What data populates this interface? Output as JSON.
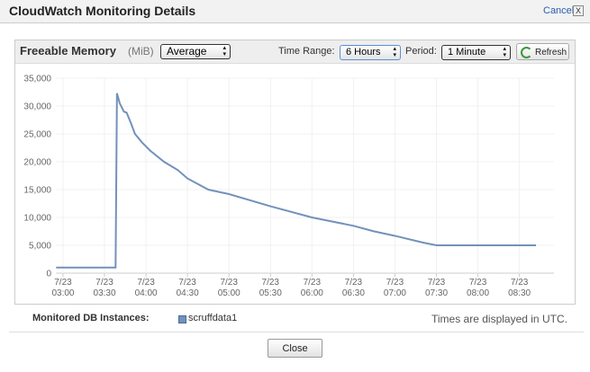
{
  "dialog": {
    "title": "CloudWatch Monitoring Details",
    "cancel": "Cancel",
    "cancel_icon": "X"
  },
  "panel": {
    "metric": "Freeable Memory",
    "unit": "(MiB)",
    "statistic": "Average",
    "time_range_label": "Time Range:",
    "time_range": "6 Hours",
    "period_label": "Period:",
    "period": "1 Minute",
    "refresh": "Refresh"
  },
  "chart_data": {
    "type": "line",
    "x": [
      "7/23 02:55",
      "7/23 03:38",
      "7/23 03:39",
      "7/23 03:41",
      "7/23 03:44",
      "7/23 03:46",
      "7/23 03:49",
      "7/23 03:52",
      "7/23 03:57",
      "7/23 04:03",
      "7/23 04:13",
      "7/23 04:23",
      "7/23 04:30",
      "7/23 04:45",
      "7/23 05:00",
      "7/23 05:30",
      "7/23 06:00",
      "7/23 06:30",
      "7/23 06:45",
      "7/23 07:00",
      "7/23 07:20",
      "7/23 07:30",
      "7/23 08:42"
    ],
    "series": [
      {
        "name": "scruffdata1",
        "color": "#7391bb",
        "values": [
          1000,
          1000,
          32300,
          30500,
          29000,
          28800,
          27000,
          25000,
          23500,
          22000,
          20000,
          18500,
          17000,
          15000,
          14200,
          12000,
          10000,
          8500,
          7500,
          6700,
          5500,
          5000,
          5000
        ]
      }
    ],
    "xlim": [
      "7/23 02:55",
      "7/23 08:55"
    ],
    "xticks": [
      {
        "value": "7/23 03:00",
        "label": "7/23\n03:00"
      },
      {
        "value": "7/23 03:30",
        "label": "7/23\n03:30"
      },
      {
        "value": "7/23 04:00",
        "label": "7/23\n04:00"
      },
      {
        "value": "7/23 04:30",
        "label": "7/23\n04:30"
      },
      {
        "value": "7/23 05:00",
        "label": "7/23\n05:00"
      },
      {
        "value": "7/23 05:30",
        "label": "7/23\n05:30"
      },
      {
        "value": "7/23 06:00",
        "label": "7/23\n06:00"
      },
      {
        "value": "7/23 06:30",
        "label": "7/23\n06:30"
      },
      {
        "value": "7/23 07:00",
        "label": "7/23\n07:00"
      },
      {
        "value": "7/23 07:30",
        "label": "7/23\n07:30"
      },
      {
        "value": "7/23 08:00",
        "label": "7/23\n08:00"
      },
      {
        "value": "7/23 08:30",
        "label": "7/23\n08:30"
      }
    ],
    "ylim": [
      0,
      35000
    ],
    "yticks": [
      0,
      {
        "value": 5000,
        "label": "5,000"
      },
      {
        "value": 10000,
        "label": "10,000"
      },
      {
        "value": 15000,
        "label": "15,000"
      },
      {
        "value": 20000,
        "label": "20,000"
      },
      {
        "value": 25000,
        "label": "25,000"
      },
      {
        "value": 30000,
        "label": "30,000"
      },
      {
        "value": 35000,
        "label": "35,000"
      }
    ],
    "grid": true
  },
  "footer": {
    "monitored_label": "Monitored DB Instances:",
    "utc_note": "Times are displayed in UTC.",
    "close": "Close"
  }
}
